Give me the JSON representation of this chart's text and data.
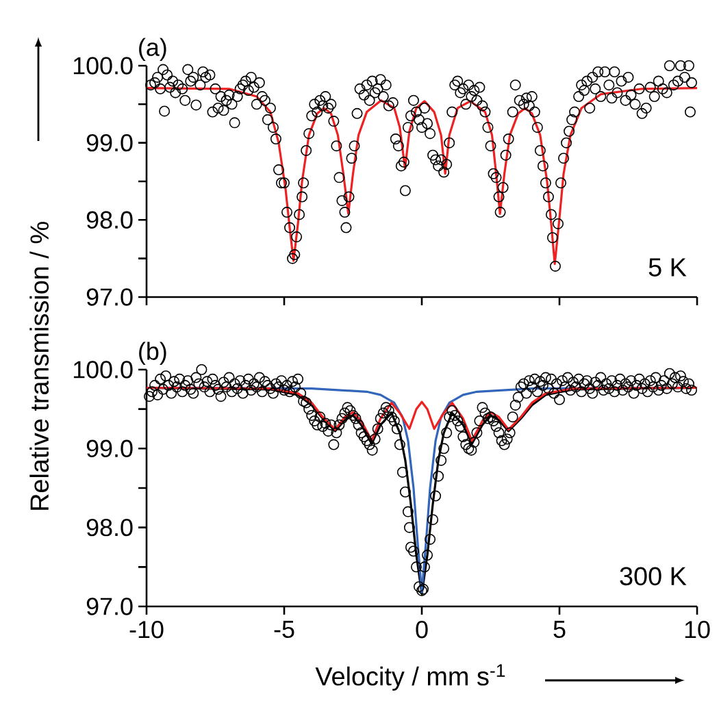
{
  "chart_data": [
    {
      "type": "scatter",
      "title": "(a)",
      "annotations": [
        "5 K"
      ],
      "ylabel": "Relative transmission / %",
      "xlim": [
        -10,
        10
      ],
      "ylim": [
        97,
        100
      ],
      "xticks": [
        -10,
        -5,
        0,
        5,
        10
      ],
      "yticks": [
        {
          "value": 97,
          "label": "97.0"
        },
        {
          "value": 97.5,
          "label": null
        },
        {
          "value": 98,
          "label": "98.0"
        },
        {
          "value": 98.5,
          "label": null
        },
        {
          "value": 99,
          "label": "99.0"
        },
        {
          "value": 99.5,
          "label": null
        },
        {
          "value": 100,
          "label": "100.0"
        }
      ],
      "tick_labels": "y",
      "series": [
        {
          "type": "scatter",
          "marker": "circle",
          "color": "#000000",
          "x": [
            -9.85,
            -9.7,
            -9.6,
            -9.5,
            -9.4,
            -9.35,
            -9.25,
            -9.15,
            -9.05,
            -8.95,
            -8.85,
            -8.7,
            -8.6,
            -8.5,
            -8.4,
            -8.3,
            -8.2,
            -8.05,
            -7.95,
            -7.85,
            -7.7,
            -7.6,
            -7.5,
            -7.4,
            -7.3,
            -7.2,
            -7.1,
            -7.0,
            -6.9,
            -6.8,
            -6.7,
            -6.6,
            -6.5,
            -6.4,
            -6.3,
            -6.2,
            -6.1,
            -6.0,
            -5.9,
            -5.8,
            -5.7,
            -5.6,
            -5.5,
            -5.4,
            -5.3,
            -5.2,
            -5.1,
            -5.0,
            -4.9,
            -4.8,
            -4.7,
            -4.62,
            -4.55,
            -4.45,
            -4.35,
            -4.3,
            -4.2,
            -4.1,
            -4.0,
            -3.9,
            -3.8,
            -3.7,
            -3.6,
            -3.5,
            -3.4,
            -3.3,
            -3.2,
            -3.1,
            -3.0,
            -2.9,
            -2.8,
            -2.75,
            -2.65,
            -2.55,
            -2.45,
            -2.35,
            -2.25,
            -2.1,
            -2.0,
            -1.9,
            -1.8,
            -1.7,
            -1.6,
            -1.5,
            -1.4,
            -1.3,
            -1.2,
            -1.05,
            -0.95,
            -0.85,
            -0.75,
            -0.65,
            -0.6,
            -0.5,
            -0.4,
            -0.3,
            -0.2,
            -0.1,
            0.0,
            0.1,
            0.2,
            0.3,
            0.4,
            0.5,
            0.6,
            0.7,
            0.8,
            0.9,
            1.0,
            1.1,
            1.2,
            1.3,
            1.4,
            1.5,
            1.6,
            1.7,
            1.8,
            1.9,
            2.0,
            2.1,
            2.2,
            2.3,
            2.4,
            2.5,
            2.6,
            2.7,
            2.8,
            2.85,
            2.95,
            3.05,
            3.15,
            3.3,
            3.4,
            3.55,
            3.7,
            3.8,
            3.9,
            4.0,
            4.1,
            4.2,
            4.3,
            4.4,
            4.5,
            4.6,
            4.7,
            4.75,
            4.85,
            4.95,
            5.05,
            5.15,
            5.25,
            5.35,
            5.45,
            5.55,
            5.7,
            5.8,
            5.9,
            6.0,
            6.1,
            6.2,
            6.3,
            6.4,
            6.5,
            6.65,
            6.8,
            6.9,
            7.0,
            7.1,
            7.25,
            7.4,
            7.5,
            7.6,
            7.75,
            7.9,
            8.0,
            8.15,
            8.3,
            8.45,
            8.6,
            8.75,
            8.9,
            9.0,
            9.15,
            9.3,
            9.4,
            9.55,
            9.7,
            9.75,
            9.8
          ],
          "values": [
            99.75,
            99.78,
            99.85,
            99.7,
            99.95,
            99.41,
            99.88,
            99.72,
            99.8,
            99.65,
            99.75,
            99.7,
            99.55,
            99.95,
            99.8,
            99.85,
            99.49,
            99.75,
            99.92,
            99.85,
            99.88,
            99.4,
            99.7,
            99.45,
            99.6,
            99.42,
            99.55,
            99.62,
            99.5,
            99.26,
            99.6,
            99.7,
            99.75,
            99.8,
            99.68,
            99.85,
            99.72,
            99.5,
            99.78,
            99.6,
            99.55,
            99.3,
            99.45,
            99.2,
            99.05,
            98.65,
            98.48,
            98.48,
            98.1,
            97.9,
            97.5,
            97.55,
            97.78,
            98.07,
            98.3,
            98.48,
            98.9,
            99.12,
            99.35,
            99.5,
            99.4,
            99.55,
            99.48,
            99.6,
            99.45,
            99.5,
            99.28,
            98.96,
            98.55,
            98.25,
            98.1,
            97.9,
            98.3,
            98.8,
            98.96,
            99.38,
            99.7,
            99.62,
            99.75,
            99.55,
            99.8,
            99.65,
            99.7,
            99.82,
            99.6,
            99.75,
            99.48,
            99.52,
            99.05,
            98.96,
            98.7,
            98.75,
            98.38,
            99.2,
            99.35,
            99.55,
            99.4,
            99.3,
            99.2,
            99.45,
            99.25,
            99.12,
            98.84,
            98.78,
            98.7,
            98.78,
            98.62,
            98.72,
            99.0,
            99.4,
            99.75,
            99.8,
            99.65,
            99.7,
            99.5,
            99.75,
            99.6,
            99.68,
            99.55,
            99.72,
            99.48,
            99.4,
            99.2,
            98.96,
            98.6,
            98.55,
            98.3,
            98.1,
            98.42,
            98.84,
            99.05,
            99.4,
            99.75,
            99.55,
            99.5,
            99.58,
            99.48,
            99.6,
            99.4,
            99.2,
            98.9,
            98.7,
            98.48,
            98.3,
            98.07,
            97.77,
            97.4,
            97.95,
            98.48,
            98.8,
            99.0,
            99.15,
            99.3,
            99.4,
            99.6,
            99.75,
            99.68,
            99.8,
            99.45,
            99.85,
            99.7,
            99.92,
            99.6,
            99.92,
            99.75,
            99.58,
            99.92,
            99.65,
            99.8,
            99.55,
            99.85,
            99.62,
            99.5,
            99.7,
            99.38,
            99.45,
            99.72,
            99.6,
            99.8,
            99.7,
            99.65,
            100.0,
            99.75,
            99.8,
            100.0,
            99.85,
            100.0,
            99.4,
            99.78
          ]
        },
        {
          "type": "line",
          "color": "#ee2222",
          "x": [
            -10,
            -7,
            -6,
            -5.5,
            -5.2,
            -4.95,
            -4.8,
            -4.66,
            -4.5,
            -4.35,
            -4.1,
            -3.8,
            -3.55,
            -3.3,
            -3.05,
            -2.85,
            -2.67,
            -2.5,
            -2.3,
            -2.0,
            -1.48,
            -1.0,
            -0.8,
            -0.61,
            -0.45,
            -0.2,
            0.1,
            0.45,
            0.7,
            0.85,
            1.0,
            1.3,
            1.76,
            2.3,
            2.55,
            2.7,
            2.84,
            3.0,
            3.2,
            3.5,
            3.75,
            4.0,
            4.3,
            4.55,
            4.7,
            4.83,
            4.98,
            5.15,
            5.4,
            5.8,
            6.5,
            8,
            10
          ],
          "values": [
            99.71,
            99.7,
            99.6,
            99.4,
            99.0,
            98.4,
            97.9,
            97.47,
            97.95,
            98.5,
            99.1,
            99.38,
            99.45,
            99.38,
            99.1,
            98.6,
            98.08,
            98.6,
            99.1,
            99.4,
            99.55,
            99.45,
            99.2,
            98.67,
            99.15,
            99.45,
            99.54,
            99.4,
            99.1,
            98.6,
            99.1,
            99.45,
            99.54,
            99.4,
            99.1,
            98.6,
            98.08,
            98.6,
            99.1,
            99.38,
            99.45,
            99.38,
            99.1,
            98.5,
            97.95,
            97.43,
            97.95,
            98.6,
            99.1,
            99.45,
            99.63,
            99.7,
            99.71
          ]
        }
      ]
    },
    {
      "type": "scatter",
      "title": "(b)",
      "annotations": [
        "300 K"
      ],
      "xlabel": "Velocity / mm s$^{-1}$",
      "xlim": [
        -10,
        10
      ],
      "ylim": [
        97,
        100
      ],
      "xticks": [
        -10,
        -5,
        0,
        5,
        10
      ],
      "yticks": [
        {
          "value": 97,
          "label": "97.0"
        },
        {
          "value": 97.5,
          "label": null
        },
        {
          "value": 98,
          "label": "98.0"
        },
        {
          "value": 98.5,
          "label": null
        },
        {
          "value": 99,
          "label": "99.0"
        },
        {
          "value": 99.5,
          "label": null
        },
        {
          "value": 100,
          "label": "100.0"
        }
      ],
      "series": [
        {
          "type": "scatter",
          "marker": "circle",
          "color": "#000000",
          "x": [
            -9.9,
            -9.8,
            -9.7,
            -9.6,
            -9.5,
            -9.4,
            -9.3,
            -9.2,
            -9.1,
            -9.0,
            -8.9,
            -8.8,
            -8.7,
            -8.6,
            -8.5,
            -8.4,
            -8.3,
            -8.2,
            -8.1,
            -8.0,
            -7.9,
            -7.8,
            -7.7,
            -7.6,
            -7.5,
            -7.4,
            -7.3,
            -7.2,
            -7.1,
            -7.0,
            -6.9,
            -6.8,
            -6.7,
            -6.6,
            -6.5,
            -6.4,
            -6.3,
            -6.2,
            -6.1,
            -6.0,
            -5.9,
            -5.8,
            -5.7,
            -5.6,
            -5.5,
            -5.4,
            -5.3,
            -5.2,
            -5.1,
            -5.0,
            -4.9,
            -4.8,
            -4.7,
            -4.6,
            -4.5,
            -4.4,
            -4.3,
            -4.2,
            -4.1,
            -4.0,
            -3.9,
            -3.8,
            -3.7,
            -3.6,
            -3.5,
            -3.4,
            -3.3,
            -3.2,
            -3.1,
            -3.0,
            -2.9,
            -2.8,
            -2.7,
            -2.6,
            -2.5,
            -2.4,
            -2.3,
            -2.2,
            -2.1,
            -2.0,
            -1.9,
            -1.8,
            -1.7,
            -1.6,
            -1.5,
            -1.4,
            -1.3,
            -1.2,
            -1.1,
            -1.0,
            -0.9,
            -0.8,
            -0.7,
            -0.6,
            -0.5,
            -0.45,
            -0.4,
            -0.3,
            -0.2,
            -0.1,
            0.0,
            0.05,
            0.1,
            0.2,
            0.3,
            0.4,
            0.5,
            0.6,
            0.7,
            0.8,
            0.9,
            1.0,
            1.1,
            1.2,
            1.3,
            1.4,
            1.5,
            1.6,
            1.7,
            1.8,
            1.9,
            2.0,
            2.1,
            2.2,
            2.3,
            2.4,
            2.5,
            2.6,
            2.7,
            2.8,
            2.9,
            3.0,
            3.1,
            3.2,
            3.3,
            3.4,
            3.5,
            3.6,
            3.7,
            3.8,
            3.9,
            4.0,
            4.1,
            4.2,
            4.3,
            4.4,
            4.5,
            4.6,
            4.7,
            4.8,
            4.9,
            5.0,
            5.1,
            5.2,
            5.3,
            5.4,
            5.5,
            5.6,
            5.7,
            5.8,
            5.9,
            6.0,
            6.1,
            6.2,
            6.3,
            6.4,
            6.5,
            6.6,
            6.7,
            6.8,
            6.9,
            7.0,
            7.1,
            7.2,
            7.3,
            7.4,
            7.5,
            7.6,
            7.7,
            7.8,
            7.9,
            8.0,
            8.1,
            8.2,
            8.3,
            8.4,
            8.5,
            8.6,
            8.7,
            8.8,
            8.9,
            9.0,
            9.1,
            9.2,
            9.3,
            9.4,
            9.5,
            9.6,
            9.7,
            9.8
          ],
          "values": [
            99.66,
            99.72,
            99.8,
            99.68,
            99.88,
            99.75,
            99.92,
            99.8,
            99.7,
            99.85,
            99.78,
            99.88,
            99.72,
            99.8,
            99.86,
            99.75,
            99.7,
            99.9,
            99.82,
            100.0,
            99.78,
            99.85,
            99.72,
            99.88,
            99.8,
            99.75,
            99.66,
            99.84,
            99.78,
            99.9,
            99.72,
            99.82,
            99.76,
            99.86,
            99.7,
            99.8,
            99.88,
            99.74,
            99.82,
            99.78,
            99.9,
            99.72,
            99.85,
            99.8,
            99.76,
            99.7,
            99.82,
            99.78,
            99.86,
            99.74,
            99.8,
            99.72,
            99.85,
            99.78,
            99.88,
            99.7,
            99.6,
            99.58,
            99.5,
            99.42,
            99.35,
            99.3,
            99.4,
            99.28,
            99.32,
            99.22,
            99.3,
            99.05,
            99.2,
            99.3,
            99.38,
            99.45,
            99.52,
            99.48,
            99.42,
            99.38,
            99.3,
            99.2,
            99.15,
            99.1,
            99.05,
            98.98,
            99.12,
            99.25,
            99.38,
            99.45,
            99.52,
            99.48,
            99.4,
            99.35,
            99.25,
            99.05,
            98.7,
            98.45,
            98.2,
            98.0,
            97.75,
            97.7,
            97.5,
            97.25,
            97.2,
            97.22,
            97.5,
            97.65,
            97.85,
            98.1,
            98.4,
            98.65,
            98.85,
            99.0,
            99.2,
            99.4,
            99.48,
            99.42,
            99.35,
            99.28,
            99.15,
            99.05,
            99.0,
            98.98,
            99.08,
            99.2,
            99.35,
            99.52,
            99.45,
            99.38,
            99.4,
            99.35,
            99.28,
            99.2,
            99.1,
            99.05,
            99.12,
            99.2,
            99.4,
            99.55,
            99.65,
            99.78,
            99.82,
            99.7,
            99.86,
            99.78,
            99.88,
            99.72,
            99.85,
            99.8,
            99.9,
            99.76,
            99.88,
            99.7,
            99.82,
            99.62,
            99.86,
            99.78,
            99.9,
            99.74,
            99.84,
            99.78,
            99.88,
            99.72,
            99.82,
            99.86,
            99.76,
            99.7,
            99.84,
            99.8,
            99.9,
            99.74,
            99.82,
            99.76,
            99.86,
            99.72,
            99.8,
            99.88,
            99.74,
            99.82,
            99.78,
            99.86,
            99.7,
            99.8,
            99.88,
            99.76,
            99.82,
            99.72,
            99.86,
            99.78,
            99.9,
            99.74,
            99.8,
            99.86,
            99.76,
            99.95,
            99.82,
            99.9,
            99.78,
            99.92,
            99.85,
            99.76,
            99.82,
            99.74
          ]
        },
        {
          "type": "line",
          "color": "#000000",
          "x": [
            -10,
            -5.5,
            -4.5,
            -4.0,
            -3.6,
            -3.15,
            -2.8,
            -2.5,
            -2.2,
            -1.82,
            -1.5,
            -1.1,
            -0.8,
            -0.6,
            -0.4,
            -0.2,
            0,
            0.2,
            0.4,
            0.6,
            0.8,
            1.1,
            1.5,
            1.82,
            2.2,
            2.5,
            2.8,
            3.15,
            3.6,
            4.0,
            4.5,
            5.5,
            10
          ],
          "values": [
            99.77,
            99.75,
            99.68,
            99.55,
            99.38,
            99.22,
            99.36,
            99.42,
            99.3,
            99.06,
            99.3,
            99.45,
            99.2,
            98.85,
            98.3,
            97.65,
            97.16,
            97.65,
            98.3,
            98.85,
            99.2,
            99.45,
            99.3,
            99.06,
            99.3,
            99.42,
            99.36,
            99.22,
            99.38,
            99.55,
            99.68,
            99.75,
            99.77
          ]
        },
        {
          "type": "line",
          "color": "#3366bb",
          "x": [
            -10,
            -4,
            -2,
            -1.5,
            -1.0,
            -0.7,
            -0.5,
            -0.3,
            -0.15,
            0,
            0.15,
            0.3,
            0.5,
            0.7,
            1.0,
            1.5,
            2,
            4,
            10
          ],
          "values": [
            99.77,
            99.76,
            99.72,
            99.68,
            99.58,
            99.4,
            99.1,
            98.5,
            97.8,
            97.18,
            97.8,
            98.5,
            99.1,
            99.4,
            99.58,
            99.68,
            99.72,
            99.76,
            99.77
          ]
        },
        {
          "type": "line",
          "color": "#ee2222",
          "x": [
            -10,
            -5.5,
            -4.5,
            -4.0,
            -3.6,
            -3.15,
            -2.8,
            -2.5,
            -2.2,
            -1.82,
            -1.5,
            -1.1,
            -0.8,
            -0.45,
            -0.2,
            0,
            0.2,
            0.45,
            0.8,
            1.1,
            1.5,
            1.82,
            2.2,
            2.5,
            2.8,
            3.15,
            3.6,
            4.0,
            4.5,
            5.5,
            10
          ],
          "values": [
            99.77,
            99.76,
            99.7,
            99.58,
            99.4,
            99.24,
            99.4,
            99.46,
            99.35,
            99.1,
            99.38,
            99.58,
            99.45,
            99.25,
            99.5,
            99.59,
            99.5,
            99.25,
            99.45,
            99.58,
            99.38,
            99.1,
            99.35,
            99.46,
            99.4,
            99.24,
            99.4,
            99.58,
            99.7,
            99.76,
            99.77
          ]
        }
      ]
    }
  ]
}
